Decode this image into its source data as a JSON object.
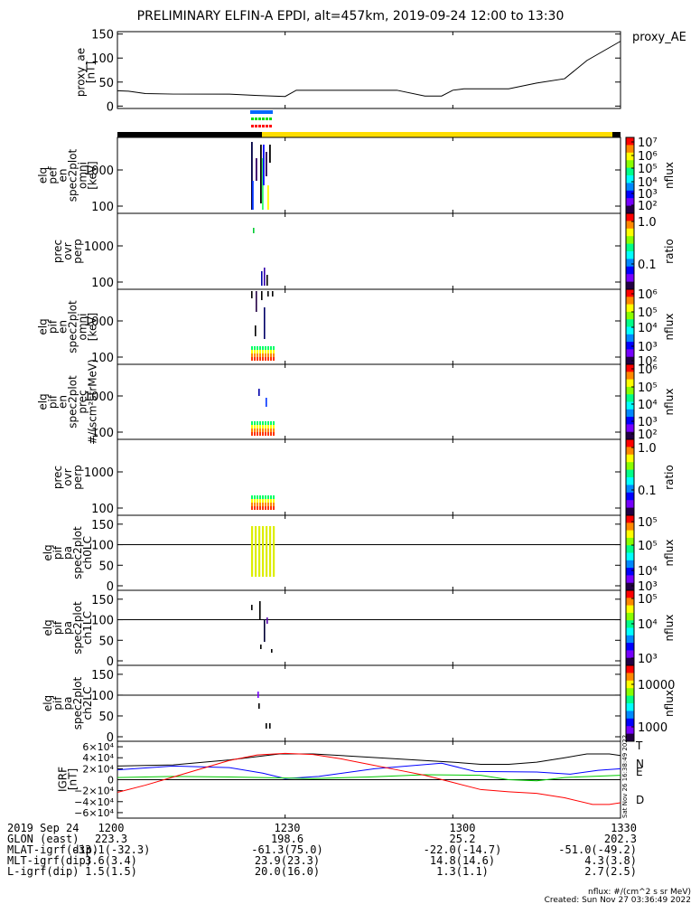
{
  "title": "PRELIMINARY ELFIN-A EPDI, alt=457km, 2019-09-24 12:00 to 13:30",
  "colors": {
    "line": "#000000",
    "trace_t": "#000000",
    "trace_n": "#0000ff",
    "trace_e": "#00cc00",
    "trace_d": "#ff0000",
    "status_black": "#000000",
    "status_yellow": "#ffdd00",
    "ind_blue": "#0066ff",
    "ind_green": "#00dd00",
    "ind_red": "#ff0000",
    "bars_yellow": "#ddee00"
  },
  "panels": {
    "proxy_ae": {
      "ylabel": [
        "proxy_ae",
        "[nT]"
      ],
      "legend": "proxy_AE",
      "yticks": [
        "0",
        "50",
        "100",
        "150"
      ]
    },
    "pef_en": {
      "ylabel": [
        "elq",
        "pef",
        "en",
        "spec2plot",
        "omni",
        "[keV]"
      ],
      "yticks": [
        "100",
        "1000"
      ],
      "cbar_label": "nflux",
      "cbar_ticks": [
        "10⁷",
        "10⁶",
        "10⁵",
        "10⁴",
        "10³",
        "10²"
      ]
    },
    "pef_ratio": {
      "ylabel": [
        "prec",
        "ovr",
        "perp"
      ],
      "yticks": [
        "100",
        "1000"
      ],
      "cbar_label": "ratio",
      "cbar_ticks": [
        "1.0",
        "0.1"
      ]
    },
    "pif_en": {
      "ylabel": [
        "elq",
        "pif",
        "en",
        "spec2plot",
        "omni",
        "[keV]"
      ],
      "yticks": [
        "100",
        "1000"
      ],
      "cbar_label": "nflux",
      "cbar_ticks": [
        "10⁶",
        "10⁵",
        "10⁴",
        "10³",
        "10²"
      ]
    },
    "pif_prec": {
      "ylabel": [
        "elq",
        "pif",
        "en",
        "spec2plot",
        "prec",
        "#/(scm²strMeV)"
      ],
      "yticks": [
        "100",
        "1000"
      ],
      "cbar_label": "nflux",
      "cbar_ticks": [
        "10⁶",
        "10⁵",
        "10⁴",
        "10³",
        "10²"
      ]
    },
    "pif_ratio": {
      "ylabel": [
        "prec",
        "ovr",
        "perp"
      ],
      "yticks": [
        "100",
        "1000"
      ],
      "cbar_label": "ratio",
      "cbar_ticks": [
        "1.0",
        "0.1"
      ]
    },
    "pa_ch0": {
      "ylabel": [
        "elq",
        "pif",
        "pa",
        "spec2plot",
        "ch0LC"
      ],
      "yticks": [
        "0",
        "50",
        "100",
        "150"
      ],
      "cbar_label": "nflux",
      "cbar_ticks": [
        "10⁵",
        "10⁵",
        "10⁴",
        "10³"
      ]
    },
    "pa_ch1": {
      "ylabel": [
        "elq",
        "pif",
        "pa",
        "spec2plot",
        "ch1LC"
      ],
      "yticks": [
        "0",
        "50",
        "100",
        "150"
      ],
      "cbar_label": "nflux",
      "cbar_ticks": [
        "10⁵",
        "10⁴",
        "10³"
      ]
    },
    "pa_ch2": {
      "ylabel": [
        "elq",
        "pif",
        "pa",
        "spec2plot",
        "ch2LC"
      ],
      "yticks": [
        "0",
        "50",
        "100",
        "150"
      ],
      "cbar_label": "nflux",
      "cbar_ticks": [
        "10000",
        "1000"
      ]
    },
    "igrf": {
      "ylabel": [
        "IGRF",
        "[nT]"
      ],
      "yticks": [
        "6×10⁴",
        "4×10⁴",
        "2×10⁴",
        "0",
        "−2×10⁴",
        "−4×10⁴",
        "−6×10⁴"
      ],
      "legend": [
        "T",
        "N",
        "E",
        "D"
      ],
      "side_stamp": "Sat Nov 26 16:38:49 2022"
    }
  },
  "footer": {
    "rows": [
      [
        "2019 Sep 24",
        "1200",
        "1230",
        "1300",
        "1330"
      ],
      [
        "GLON (east)",
        "223.3",
        "198.6",
        "25.2",
        "202.3"
      ],
      [
        "MLAT-igrf(dip)",
        "-33.1(-32.3)",
        "-61.3(75.0)",
        "-22.0(-14.7)",
        "-51.0(-49.2)"
      ],
      [
        "MLT-igrf(dip)",
        "3.6(3.4)",
        "23.9(23.3)",
        "14.8(14.6)",
        "4.3(3.8)"
      ],
      [
        "L-igrf(dip)",
        "1.5(1.5)",
        "20.0(16.0)",
        "1.3(1.1)",
        "2.7(2.5)"
      ]
    ],
    "units_note": "nflux: #/(cm^2 s sr MeV)",
    "created": "Created: Sun Nov 27 03:36:49 2022"
  },
  "chart_data": {
    "type": "line",
    "x_label_times": [
      "1200",
      "1230",
      "1300",
      "1330"
    ],
    "panels": [
      {
        "id": "proxy_ae",
        "type": "line",
        "ylim": [
          -5,
          155
        ],
        "series": [
          {
            "x": [
              0,
              2,
              5,
              10,
              20,
              25,
              30,
              32,
              36,
              40,
              45,
              50,
              55,
              58,
              60,
              62,
              65,
              70,
              75,
              80,
              84,
              90
            ],
            "values": [
              32,
              31,
              26,
              25,
              25,
              22,
              20,
              33,
              33,
              33,
              33,
              33,
              21,
              21,
              33,
              36,
              36,
              36,
              48,
              57,
              95,
              135
            ]
          }
        ]
      },
      {
        "id": "igrf",
        "type": "line",
        "ylim": [
          -70000,
          70000
        ],
        "series": [
          {
            "name": "T",
            "x": [
              0,
              10,
              20,
              29,
              35,
              45,
              60,
              65,
              70,
              75,
              80,
              84,
              88,
              90
            ],
            "values": [
              25000,
              27000,
              36000,
              47000,
              47000,
              41000,
              32000,
              28000,
              28000,
              32000,
              40000,
              47000,
              47000,
              44000
            ]
          },
          {
            "name": "N",
            "x": [
              0,
              10,
              20,
              26,
              30,
              36,
              46,
              58,
              64,
              75,
              81,
              86,
              90
            ],
            "values": [
              18000,
              25000,
              22000,
              12000,
              2000,
              6000,
              20000,
              30000,
              15000,
              14000,
              10000,
              17000,
              20000
            ]
          },
          {
            "name": "E",
            "x": [
              0,
              10,
              20,
              30,
              35,
              45,
              55,
              65,
              70,
              75,
              80,
              90
            ],
            "values": [
              4000,
              6000,
              5000,
              3000,
              2000,
              5000,
              9000,
              8000,
              0,
              -2000,
              4000,
              8000
            ]
          },
          {
            "name": "D",
            "x": [
              0,
              5,
              10,
              15,
              20,
              25,
              30,
              35,
              40,
              45,
              50,
              55,
              60,
              65,
              70,
              75,
              80,
              85,
              88,
              90
            ],
            "values": [
              -23000,
              -10000,
              5000,
              20000,
              35000,
              45000,
              48000,
              46000,
              38000,
              28000,
              18000,
              8000,
              -5000,
              -18000,
              -22000,
              -25000,
              -33000,
              -45000,
              -45000,
              -42000
            ]
          }
        ]
      }
    ]
  }
}
